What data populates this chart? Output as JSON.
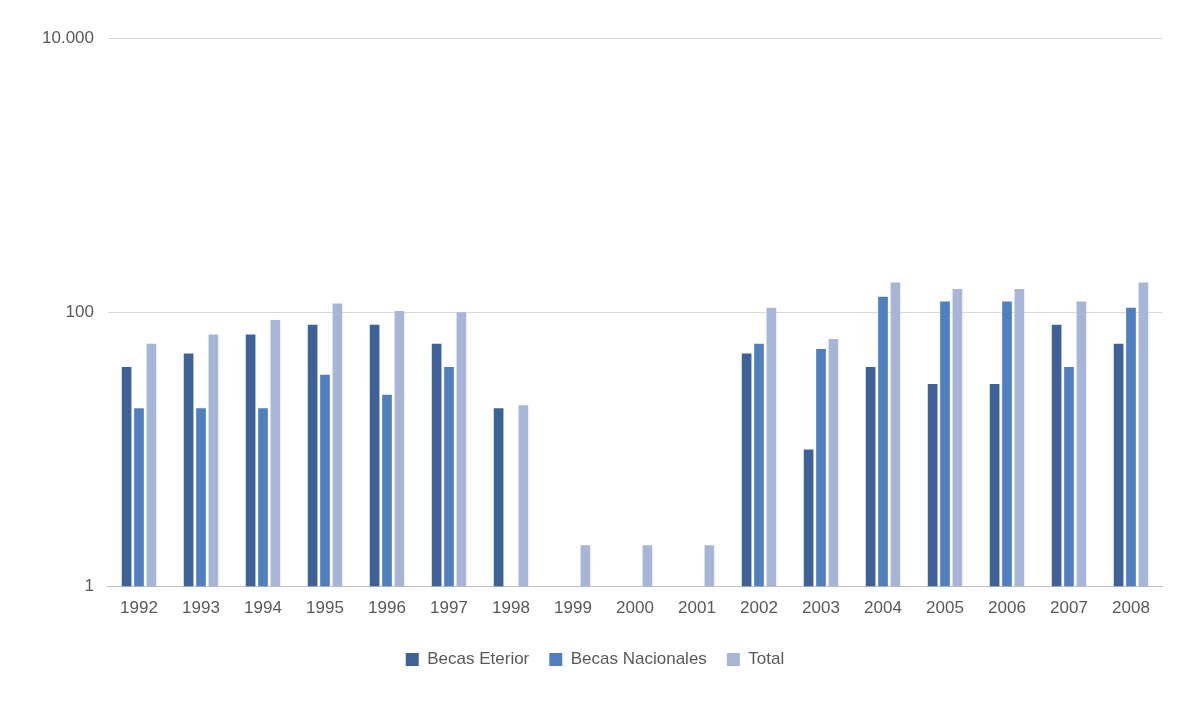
{
  "chart_data": {
    "type": "bar",
    "categories": [
      "1992",
      "1993",
      "1994",
      "1995",
      "1996",
      "1997",
      "1998",
      "1999",
      "2000",
      "2001",
      "2002",
      "2003",
      "2004",
      "2005",
      "2006",
      "2007",
      "2008"
    ],
    "series": [
      {
        "name": "Becas Eterior",
        "color": "#3e6298",
        "values": [
          40,
          50,
          69,
          81,
          81,
          59,
          20,
          null,
          null,
          null,
          50,
          10,
          40,
          30,
          30,
          81,
          59
        ]
      },
      {
        "name": "Becas Nacionales",
        "color": "#4f7fbf",
        "values": [
          20,
          20,
          20,
          35,
          25,
          40,
          null,
          null,
          null,
          null,
          59,
          54,
          130,
          120,
          120,
          40,
          108
        ]
      },
      {
        "name": "Total",
        "color": "#a7b6d6",
        "values": [
          59,
          69,
          88,
          116,
          102,
          100,
          21,
          2,
          2,
          2,
          108,
          64,
          165,
          148,
          148,
          120,
          165
        ]
      }
    ],
    "log": "y",
    "ylim": [
      1,
      10000
    ],
    "yticks": [
      1,
      100,
      {
        "value": 10000,
        "label": "10.000"
      }
    ],
    "grid": "y",
    "legend": "bottom"
  }
}
